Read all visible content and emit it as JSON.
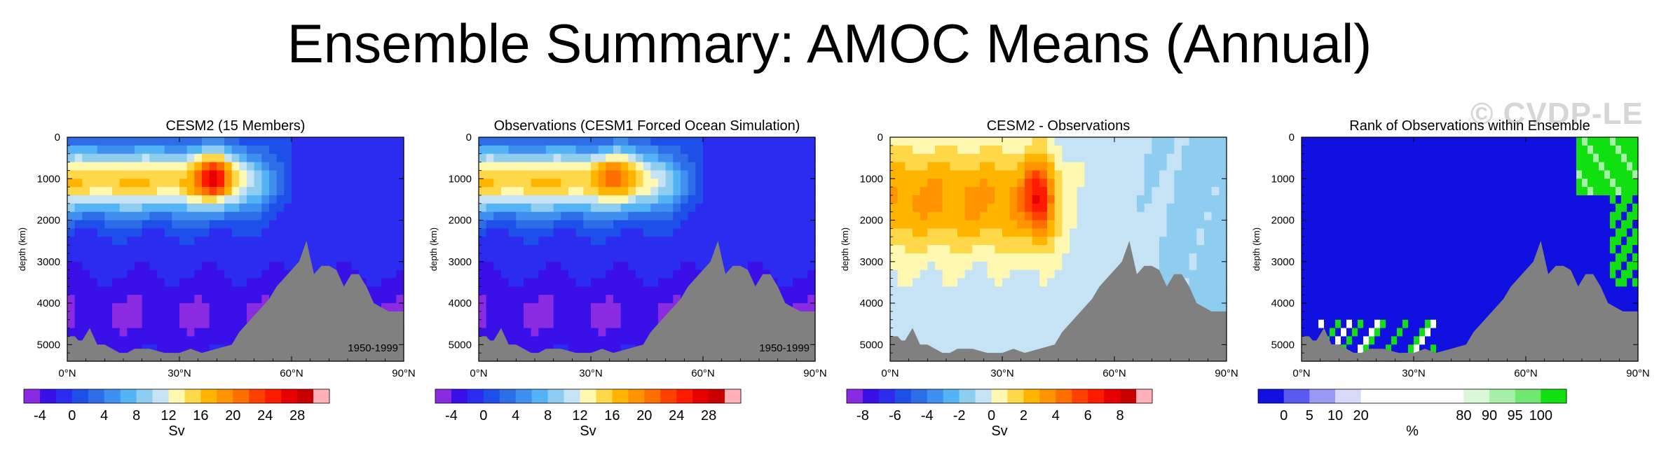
{
  "title": "Ensemble Summary: AMOC Means (Annual)",
  "watermark": "© CVDP-LE",
  "chart_data": [
    {
      "type": "heatmap",
      "title": "CESM2 (15 Members)",
      "ylabel": "depth (km)",
      "xlim": [
        0,
        90
      ],
      "ylim": [
        5400,
        0
      ],
      "xticks": [
        "0°N",
        "30°N",
        "60°N",
        "90°N"
      ],
      "yticks": [
        "0",
        "1000",
        "2000",
        "3000",
        "4000",
        "5000"
      ],
      "annotation": "1950-1999",
      "scheme": "sv",
      "peak_value": 29,
      "peak_lat": 39,
      "peak_depth": 950,
      "colorbar": {
        "label": "Sv",
        "colors": [
          "#8a2be2",
          "#3a10e8",
          "#2b2cf0",
          "#1e4fe8",
          "#2d6ee8",
          "#3f8ff0",
          "#53b3f5",
          "#8fcdf0",
          "#c6e2f5",
          "#fff8b0",
          "#ffd84a",
          "#ffb400",
          "#ff9400",
          "#ff6f00",
          "#ff4000",
          "#ff1a00",
          "#e80000",
          "#c80000",
          "#ffb0b8"
        ],
        "labels": [
          "-4",
          "0",
          "4",
          "8",
          "12",
          "16",
          "20",
          "24",
          "28"
        ]
      }
    },
    {
      "type": "heatmap",
      "title": "Observations (CESM1 Forced Ocean Simulation)",
      "ylabel": "depth (km)",
      "xlim": [
        0,
        90
      ],
      "ylim": [
        5400,
        0
      ],
      "xticks": [
        "0°N",
        "30°N",
        "60°N",
        "90°N"
      ],
      "yticks": [
        "0",
        "1000",
        "2000",
        "3000",
        "4000",
        "5000"
      ],
      "annotation": "1950-1999",
      "scheme": "sv",
      "peak_value": 23,
      "peak_lat": 36,
      "peak_depth": 850,
      "colorbar": {
        "label": "Sv",
        "colors": [
          "#8a2be2",
          "#3a10e8",
          "#2b2cf0",
          "#1e4fe8",
          "#2d6ee8",
          "#3f8ff0",
          "#53b3f5",
          "#8fcdf0",
          "#c6e2f5",
          "#fff8b0",
          "#ffd84a",
          "#ffb400",
          "#ff9400",
          "#ff6f00",
          "#ff4000",
          "#ff1a00",
          "#e80000",
          "#c80000",
          "#ffb0b8"
        ],
        "labels": [
          "-4",
          "0",
          "4",
          "8",
          "12",
          "16",
          "20",
          "24",
          "28"
        ]
      }
    },
    {
      "type": "heatmap",
      "title": "CESM2 - Observations",
      "ylabel": "depth (km)",
      "xlim": [
        0,
        90
      ],
      "ylim": [
        5400,
        0
      ],
      "xticks": [
        "0°N",
        "30°N",
        "60°N",
        "90°N"
      ],
      "yticks": [
        "0",
        "1000",
        "2000",
        "3000",
        "4000",
        "5000"
      ],
      "annotation": "",
      "scheme": "diff",
      "peak_value": 8.5,
      "peak_lat": 40,
      "peak_depth": 1500,
      "colorbar": {
        "label": "Sv",
        "colors": [
          "#8a2be2",
          "#3a10e8",
          "#2b2cf0",
          "#1e4fe8",
          "#2d6ee8",
          "#3f8ff0",
          "#53b3f5",
          "#8fcdf0",
          "#c6e2f5",
          "#fff8b0",
          "#ffd84a",
          "#ffb400",
          "#ff9400",
          "#ff6f00",
          "#ff4000",
          "#ff1a00",
          "#e80000",
          "#c80000",
          "#ffb0b8"
        ],
        "labels": [
          "-8",
          "-6",
          "-4",
          "-2",
          "0",
          "2",
          "4",
          "6",
          "8"
        ]
      }
    },
    {
      "type": "heatmap",
      "title": "Rank of Observations within Ensemble",
      "ylabel": "depth (km)",
      "xlim": [
        0,
        90
      ],
      "ylim": [
        5400,
        0
      ],
      "xticks": [
        "0°N",
        "30°N",
        "60°N",
        "90°N"
      ],
      "yticks": [
        "0",
        "1000",
        "2000",
        "3000",
        "4000",
        "5000"
      ],
      "annotation": "",
      "scheme": "rank",
      "colorbar": {
        "label": "%",
        "colors": [
          "#1010e0",
          "#5a5af0",
          "#9a9af5",
          "#d8d8f8",
          "#ffffff",
          "#ffffff",
          "#ffffff",
          "#ffffff",
          "#d8f8d8",
          "#a8f0a8",
          "#70e870",
          "#10e010"
        ],
        "labels": [
          "0",
          "5",
          "10",
          "20",
          "80",
          "90",
          "95",
          "100"
        ],
        "label_bounds": [
          1,
          2,
          3,
          4,
          8,
          9,
          10,
          11
        ]
      }
    }
  ],
  "bathymetry": {
    "lats": [
      0,
      1,
      2,
      3,
      4,
      6,
      8,
      10,
      12,
      14,
      16,
      18,
      22,
      26,
      30,
      33,
      36,
      40,
      44,
      46,
      50,
      54,
      56,
      58,
      60,
      62,
      64,
      66,
      68,
      70,
      72,
      74,
      76,
      78,
      80,
      82,
      84,
      86,
      88,
      90
    ],
    "depths": [
      4800,
      4800,
      4800,
      4900,
      4900,
      4600,
      5000,
      5000,
      5100,
      5200,
      5200,
      5100,
      5100,
      5200,
      5200,
      5100,
      5200,
      5100,
      5000,
      4700,
      4300,
      3900,
      3600,
      3400,
      3200,
      3000,
      2500,
      3300,
      3100,
      3100,
      3200,
      3600,
      3300,
      3300,
      3600,
      4000,
      4100,
      4200,
      4200,
      4200
    ]
  }
}
